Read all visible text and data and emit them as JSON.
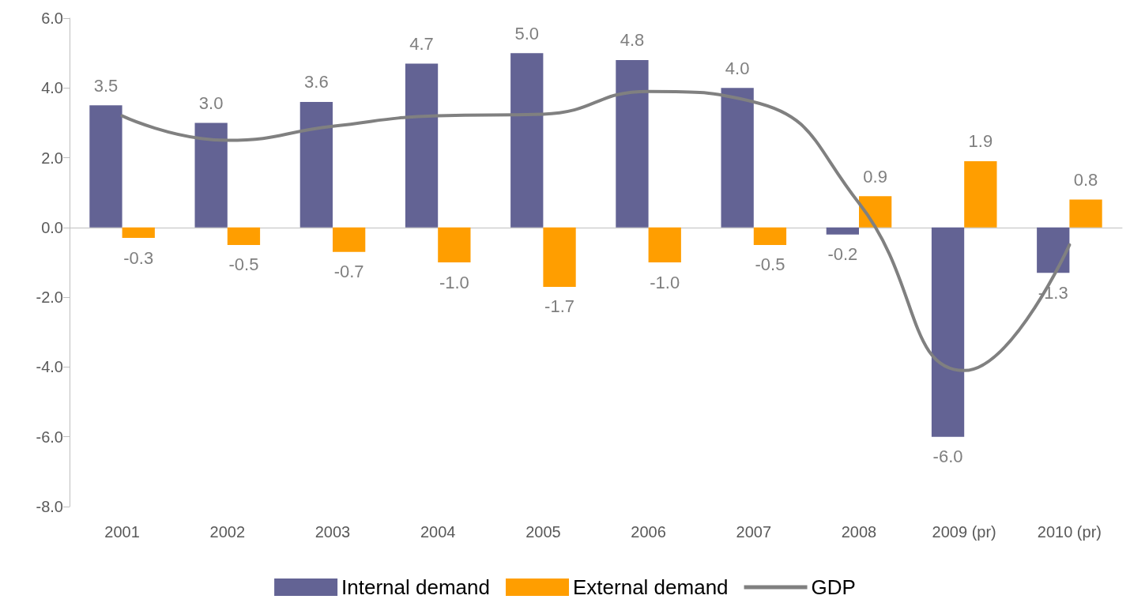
{
  "chart_data": {
    "type": "bar",
    "categories": [
      "2001",
      "2002",
      "2003",
      "2004",
      "2005",
      "2006",
      "2007",
      "2008",
      "2009 (pr)",
      "2010 (pr)"
    ],
    "series": [
      {
        "name": "Internal demand",
        "color": "#636394",
        "values": [
          3.5,
          3.0,
          3.6,
          4.7,
          5.0,
          4.8,
          4.0,
          -0.2,
          -6.0,
          -1.3
        ],
        "value_labels": [
          "3.5",
          "3.0",
          "3.6",
          "4.7",
          "5.0",
          "4.8",
          "4.0",
          "-0.2",
          "-6.0",
          "-1.3"
        ]
      },
      {
        "name": "External demand",
        "color": "#ff9e00",
        "values": [
          -0.3,
          -0.5,
          -0.7,
          -1.0,
          -1.7,
          -1.0,
          -0.5,
          0.9,
          1.9,
          0.8
        ],
        "value_labels": [
          "-0.3",
          "-0.5",
          "-0.7",
          "-1.0",
          "-1.7",
          "-1.0",
          "-0.5",
          "0.9",
          "1.9",
          "0.8"
        ]
      },
      {
        "name": "GDP",
        "type": "line",
        "color": "#808080",
        "values": [
          3.2,
          2.5,
          2.9,
          3.2,
          3.25,
          3.9,
          3.6,
          0.7,
          -4.1,
          -0.5
        ]
      }
    ],
    "ylim": [
      -8,
      6
    ],
    "yticks": [
      {
        "value": -8,
        "label": "-8.0"
      },
      {
        "value": -6,
        "label": "-6.0"
      },
      {
        "value": -4,
        "label": "-4.0"
      },
      {
        "value": -2,
        "label": "-2.0"
      },
      {
        "value": 0,
        "label": "0.0"
      },
      {
        "value": 2,
        "label": "2.0"
      },
      {
        "value": 4,
        "label": "4.0"
      },
      {
        "value": 6,
        "label": "6.0"
      }
    ],
    "legend": "bottom",
    "marker": "none",
    "line_style": "solid"
  }
}
